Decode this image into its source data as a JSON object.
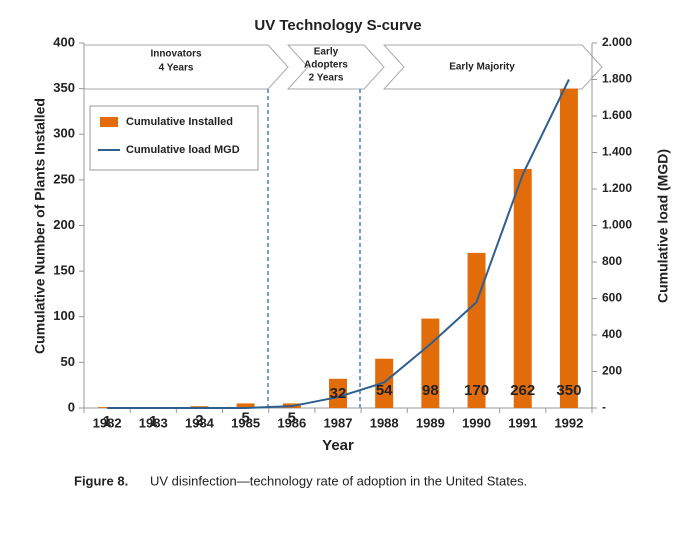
{
  "chart_data": {
    "type": "bar-line",
    "title": "UV Technology S-curve",
    "x_label": "Year",
    "y_label": "Cumulative Number of Plants Installed",
    "y2_label": "Cumulative load (MGD)",
    "categories": [
      "1982",
      "1983",
      "1984",
      "1985",
      "1986",
      "1987",
      "1988",
      "1989",
      "1990",
      "1991",
      "1992"
    ],
    "series": [
      {
        "name": "Cumulative Installed",
        "color": "#e36c0a",
        "kind": "bar",
        "values": [
          1,
          1,
          2,
          5,
          5,
          32,
          54,
          98,
          170,
          262,
          350
        ]
      },
      {
        "name": "Cumulative load MGD",
        "color": "#2f5f8f",
        "kind": "line",
        "axis": "y2",
        "values": [
          0,
          0,
          0,
          0,
          10,
          60,
          140,
          350,
          580,
          1280,
          1800
        ]
      }
    ],
    "ylim": [
      0,
      400
    ],
    "yticks": [
      0,
      50,
      100,
      150,
      200,
      250,
      300,
      350,
      400
    ],
    "y2lim": [
      0,
      2000
    ],
    "y2ticks": [
      {
        "value": 0,
        "label": "-"
      },
      200,
      400,
      600,
      800,
      {
        "value": 1000,
        "label": "1.000"
      },
      {
        "value": 1200,
        "label": "1.200"
      },
      {
        "value": 1400,
        "label": "1.400"
      },
      {
        "value": 1600,
        "label": "1.600"
      },
      {
        "value": 1800,
        "label": "1.800"
      },
      {
        "value": 2000,
        "label": "2.000"
      }
    ],
    "phases": [
      {
        "lines": [
          "Innovators",
          "4 Years"
        ]
      },
      {
        "lines": [
          "Early",
          "Adopters",
          "2 Years"
        ]
      },
      {
        "lines": [
          "Early Majority"
        ]
      }
    ],
    "caption": {
      "label": "Figure 8.",
      "text": "UV disinfection—technology rate of adoption in the United States."
    }
  }
}
